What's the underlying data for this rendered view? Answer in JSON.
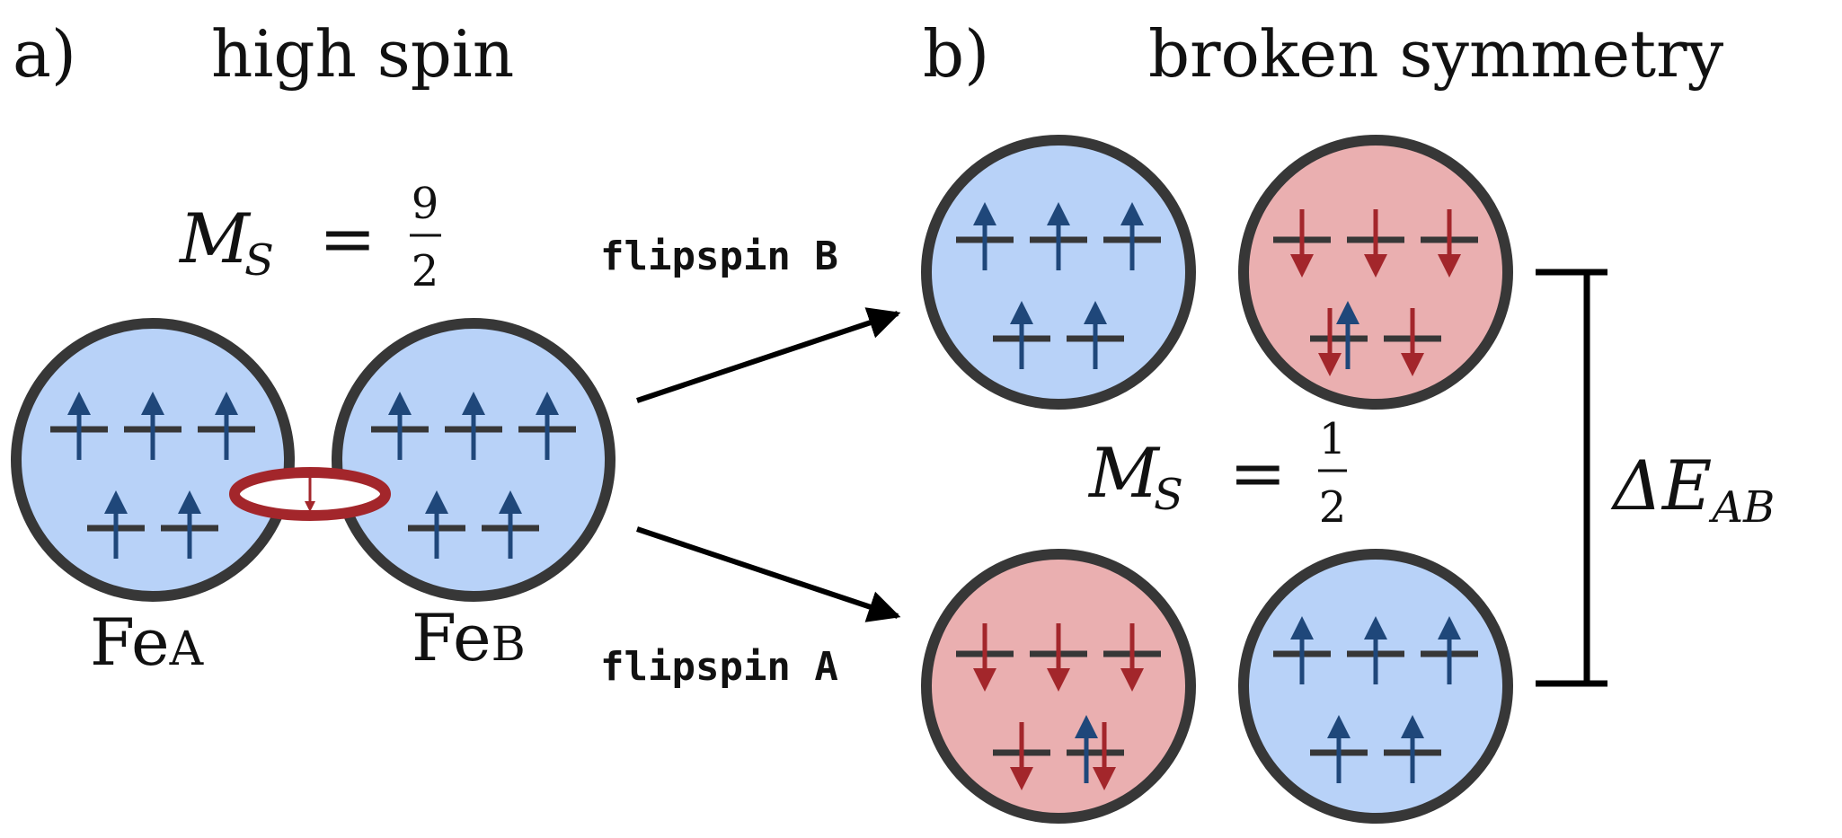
{
  "panel_a": {
    "letter": "a)",
    "title": "high spin",
    "ms_symbol": "M",
    "ms_sub": "S",
    "ms_equals": "=",
    "ms_num": "9",
    "ms_den": "2",
    "label_a_main": "Fe",
    "label_a_sub": "A",
    "label_b_main": "Fe",
    "label_b_sub": "B"
  },
  "arrows": {
    "top_label": "flipspin B",
    "bottom_label": "flipspin A"
  },
  "panel_b": {
    "letter": "b)",
    "title": "broken symmetry",
    "ms_symbol": "M",
    "ms_sub": "S",
    "ms_equals": "=",
    "ms_num": "1",
    "ms_den": "2",
    "delta_symbol": "ΔE",
    "delta_sub": "AB"
  },
  "colors": {
    "spin_up_fill": "#b8d2f8",
    "spin_down_fill": "#eaafb0",
    "up_arrow": "#1f477a",
    "down_arrow": "#a3262b",
    "outline": "#373737",
    "bridge": "#a3262b"
  }
}
